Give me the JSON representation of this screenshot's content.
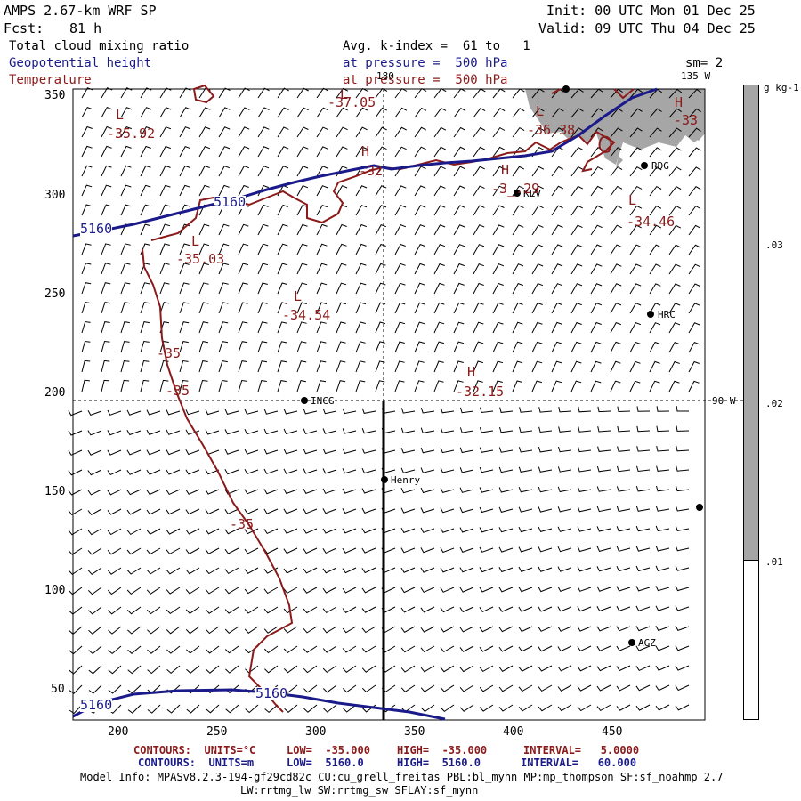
{
  "header": {
    "title": "AMPS 2.67-km WRF SP",
    "init": "Init: 00 UTC Mon 01 Dec 25",
    "fcst_label": "Fcst:",
    "fcst_value": "81 h",
    "valid": "Valid: 09 UTC Thu 04 Dec 25"
  },
  "fields": {
    "shaded": "Total cloud mixing ratio",
    "contour_blue": "Geopotential height",
    "contour_red": "Temperature",
    "avg_text": "Avg. k-index =  61 to   1",
    "pressure1": "at pressure =  500 hPa",
    "pressure2": "at pressure =  500 hPa",
    "smooth": "sm= 2"
  },
  "axes": {
    "x_ticks": [
      "200",
      "250",
      "300",
      "350",
      "400",
      "450"
    ],
    "y_ticks": [
      "350",
      "300",
      "250",
      "200",
      "150",
      "100",
      "50"
    ],
    "lon_180": "180",
    "lon_135": "135 W",
    "lon_90": "90 W"
  },
  "colorbar": {
    "unit": "g kg-1",
    "labels": [
      ".03",
      ".02",
      ".01"
    ],
    "shade_color": "#a6a6a6"
  },
  "stations": [
    {
      "name": "KLV"
    },
    {
      "name": "RDG"
    },
    {
      "name": "HRC"
    },
    {
      "name": "INCG"
    },
    {
      "name": "Henry"
    },
    {
      "name": "AGZ"
    }
  ],
  "labels": {
    "pressure_centers": [
      "L",
      "L",
      "L",
      "H",
      "H",
      "H",
      "L",
      "L",
      "L",
      "H"
    ],
    "temp_values": [
      "-37.05",
      "-35.92",
      "-36.38",
      "-33",
      "-3_.29",
      "-34.46",
      "-35.03",
      "-34.54",
      "-35",
      "-35",
      "-32.15",
      "-35",
      "-32"
    ],
    "height_values": [
      "5160",
      "5160",
      "5160",
      "5160"
    ]
  },
  "footer": {
    "row1_label": "CONTOURS:  UNITS=°C",
    "row1_low": "LOW=  -35.000",
    "row1_high": "HIGH=  -35.000",
    "row1_interval": "INTERVAL=   5.0000",
    "row2_label": "CONTOURS:  UNITS=m",
    "row2_low": "LOW=  5160.0",
    "row2_high": "HIGH=  5160.0",
    "row2_interval": "INTERVAL=   60.000",
    "model_info": "Model Info: MPASv8.2.3-194-gf29cd82c CU:cu_grell_freitas PBL:bl_mynn MP:mp_thompson SF:sf_noahmp 2.7",
    "model_info2": "LW:rrtmg_lw SW:rrtmg_sw SFLAY:sf_mynn"
  },
  "colors": {
    "height_contour": "#1a1a8a",
    "temp_contour": "#8b1a1a",
    "cloud_shading": "#a6a6a6"
  }
}
